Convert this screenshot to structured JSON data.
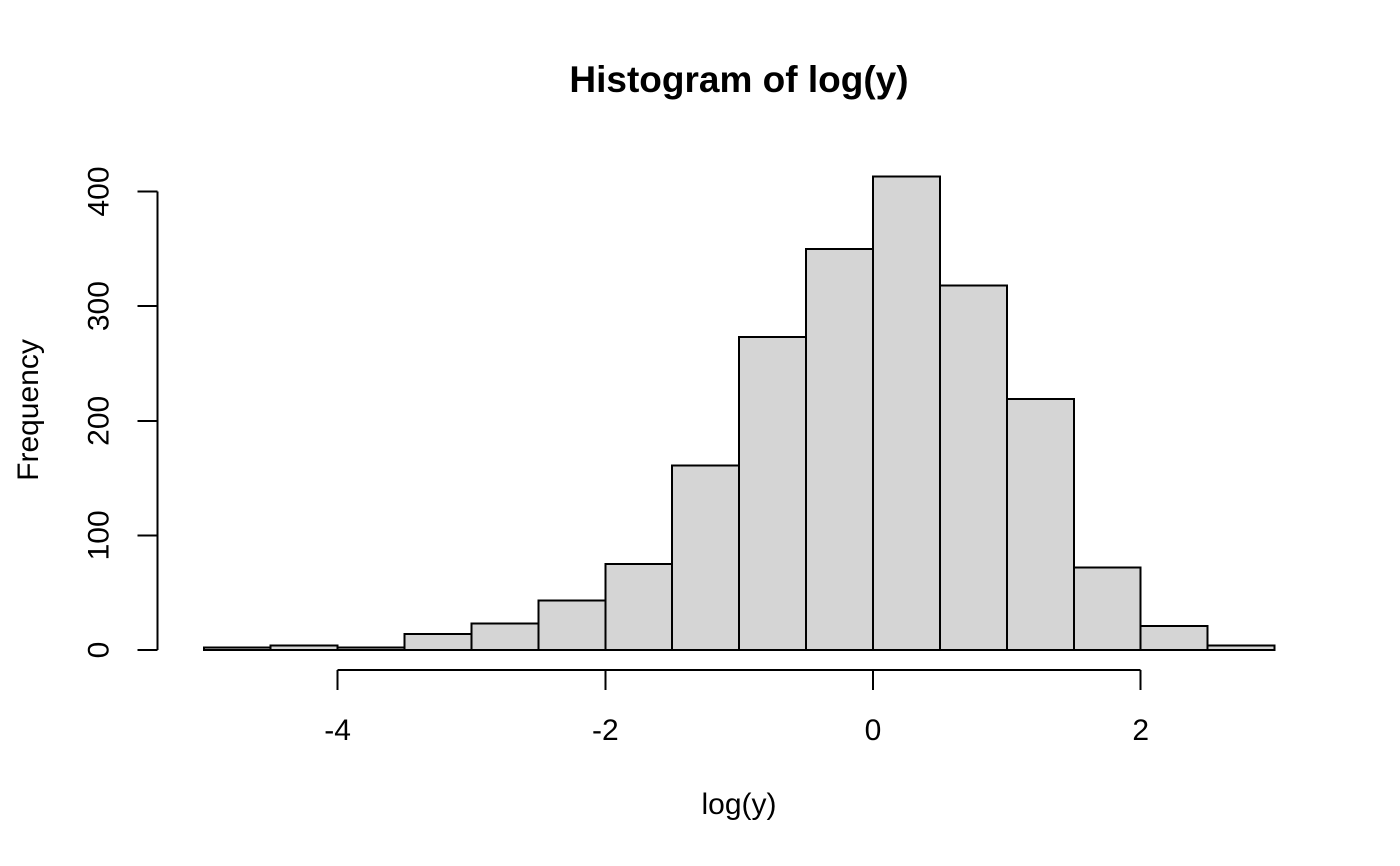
{
  "chart_data": {
    "type": "bar",
    "subtype": "histogram",
    "title": "Histogram of log(y)",
    "xlabel": "log(y)",
    "ylabel": "Frequency",
    "bins": {
      "start": -5.0,
      "width": 0.5,
      "edges": [
        -5.0,
        -4.5,
        -4.0,
        -3.5,
        -3.0,
        -2.5,
        -2.0,
        -1.5,
        -1.0,
        -0.5,
        0.0,
        0.5,
        1.0,
        1.5,
        2.0,
        2.5,
        3.0
      ],
      "counts": [
        2,
        4,
        2,
        14,
        23,
        43,
        75,
        161,
        273,
        350,
        413,
        318,
        219,
        72,
        21,
        4
      ]
    },
    "x_ticks": [
      -4,
      -2,
      0,
      2
    ],
    "y_ticks": [
      0,
      100,
      200,
      300,
      400
    ],
    "xlim": [
      -5.0,
      3.0
    ],
    "ylim": [
      0,
      413
    ],
    "grid": false,
    "legend": "none",
    "colors": {
      "bar_fill": "#d5d5d5",
      "bar_stroke": "#000000",
      "axis": "#000000",
      "text": "#000000",
      "background": "#ffffff"
    }
  }
}
